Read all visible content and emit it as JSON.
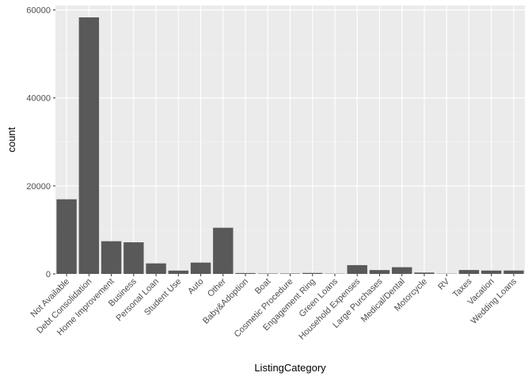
{
  "chart_data": {
    "type": "bar",
    "xlabel": "ListingCategory",
    "ylabel": "count",
    "ylim": [
      0,
      61000
    ],
    "y_ticks": [
      0,
      20000,
      40000,
      60000
    ],
    "y_tick_labels": [
      "0",
      "20000",
      "40000",
      "60000"
    ],
    "grid": true,
    "categories": [
      "Not Available",
      "Debt Consolidation",
      "Home Improvement",
      "Business",
      "Personal Loan",
      "Student Use",
      "Auto",
      "Other",
      "Baby&Adoption",
      "Boat",
      "Cosmetic Procedure",
      "Engagement Ring",
      "Green Loans",
      "Household Expenses",
      "Large Purchases",
      "Medical/Dental",
      "Motorcycle",
      "RV",
      "Taxes",
      "Vacation",
      "Wedding Loans"
    ],
    "values": [
      16965,
      58308,
      7433,
      7189,
      2395,
      756,
      2572,
      10494,
      199,
      85,
      91,
      217,
      59,
      1996,
      876,
      1522,
      304,
      52,
      885,
      768,
      771
    ],
    "colors": {
      "panel": "#ebebeb",
      "grid_major": "#ffffff",
      "grid_minor": "#f2f2f2",
      "bar": "#595959",
      "tick": "#333333"
    }
  }
}
